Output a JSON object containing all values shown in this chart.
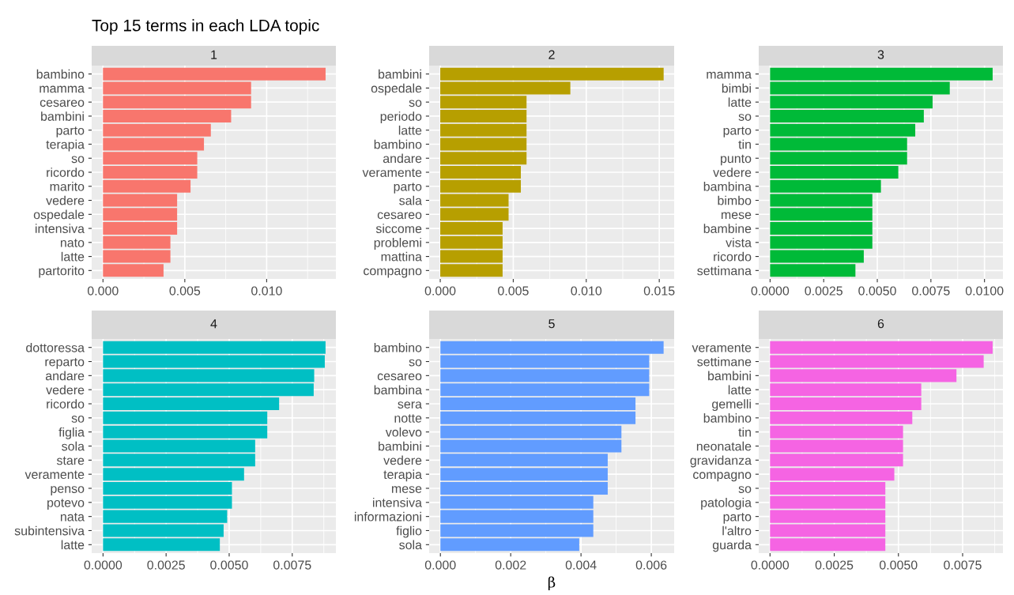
{
  "chart_data": [
    {
      "type": "bar",
      "orientation": "horizontal",
      "title": "1",
      "annotations": [
        "Top 15 terms in each LDA topic"
      ],
      "grid": true,
      "color": "#f8766d",
      "categories": [
        "bambino",
        "mamma",
        "cesareo",
        "bambini",
        "parto",
        "terapia",
        "so",
        "ricordo",
        "marito",
        "vedere",
        "ospedale",
        "intensiva",
        "nato",
        "latte",
        "partorito"
      ],
      "values": [
        0.0136,
        0.00905,
        0.00905,
        0.00783,
        0.00659,
        0.00617,
        0.00576,
        0.00576,
        0.00535,
        0.00453,
        0.00453,
        0.00453,
        0.00412,
        0.00412,
        0.0037
      ],
      "xlim": [
        -0.00069,
        0.01423
      ],
      "xticks": [
        {
          "value": 0,
          "label": "0.000"
        },
        {
          "value": 0.005,
          "label": "0.005"
        },
        {
          "value": 0.01,
          "label": "0.010"
        }
      ]
    },
    {
      "type": "bar",
      "orientation": "horizontal",
      "title": "2",
      "grid": true,
      "color": "#b79f00",
      "categories": [
        "bambini",
        "ospedale",
        "so",
        "periodo",
        "latte",
        "bambino",
        "andare",
        "veramente",
        "parto",
        "sala",
        "cesareo",
        "siccome",
        "problemi",
        "mattina",
        "compagno"
      ],
      "values": [
        0.0153,
        0.00891,
        0.00591,
        0.00591,
        0.00591,
        0.00591,
        0.00591,
        0.00552,
        0.00552,
        0.00468,
        0.00468,
        0.00427,
        0.00427,
        0.00427,
        0.00427
      ],
      "xlim": [
        -0.00076,
        0.01602
      ],
      "xticks": [
        {
          "value": 0,
          "label": "0.000"
        },
        {
          "value": 0.005,
          "label": "0.005"
        },
        {
          "value": 0.01,
          "label": "0.010"
        },
        {
          "value": 0.015,
          "label": "0.015"
        }
      ]
    },
    {
      "type": "bar",
      "orientation": "horizontal",
      "title": "3",
      "grid": true,
      "color": "#00ba38",
      "categories": [
        "mamma",
        "bimbi",
        "latte",
        "so",
        "parto",
        "tin",
        "punto",
        "vedere",
        "bambina",
        "bimbo",
        "mese",
        "bambine",
        "vista",
        "ricordo",
        "settimana"
      ],
      "values": [
        0.01038,
        0.00838,
        0.00758,
        0.00717,
        0.00677,
        0.00639,
        0.00639,
        0.00598,
        0.00517,
        0.00477,
        0.00477,
        0.00477,
        0.00477,
        0.00437,
        0.00398
      ],
      "xlim": [
        -0.00053,
        0.01086
      ],
      "xticks": [
        {
          "value": 0,
          "label": "0.0000"
        },
        {
          "value": 0.0025,
          "label": "0.0025"
        },
        {
          "value": 0.005,
          "label": "0.0050"
        },
        {
          "value": 0.0075,
          "label": "0.0075"
        },
        {
          "value": 0.01,
          "label": "0.0100"
        }
      ]
    },
    {
      "type": "bar",
      "orientation": "horizontal",
      "title": "4",
      "grid": true,
      "color": "#00bfc4",
      "categories": [
        "dottoressa",
        "reparto",
        "andare",
        "vedere",
        "ricordo",
        "so",
        "figlia",
        "sola",
        "stare",
        "veramente",
        "penso",
        "potevo",
        "nata",
        "subintensiva",
        "latte"
      ],
      "values": [
        0.00882,
        0.00879,
        0.00837,
        0.00835,
        0.00698,
        0.00651,
        0.00651,
        0.00603,
        0.00603,
        0.00559,
        0.00511,
        0.00511,
        0.00492,
        0.00478,
        0.00463
      ],
      "xlim": [
        -0.00045,
        0.00923
      ],
      "xticks": [
        {
          "value": 0,
          "label": "0.0000"
        },
        {
          "value": 0.0025,
          "label": "0.0025"
        },
        {
          "value": 0.005,
          "label": "0.0050"
        },
        {
          "value": 0.0075,
          "label": "0.0075"
        }
      ]
    },
    {
      "type": "bar",
      "orientation": "horizontal",
      "title": "5",
      "xlabel": "β",
      "grid": true,
      "color": "#619cff",
      "categories": [
        "bambino",
        "so",
        "cesareo",
        "bambina",
        "sera",
        "notte",
        "volevo",
        "bambini",
        "vedere",
        "terapia",
        "mese",
        "intensiva",
        "informazioni",
        "figlio",
        "sola"
      ],
      "values": [
        0.00635,
        0.00594,
        0.00594,
        0.00594,
        0.00555,
        0.00555,
        0.00515,
        0.00515,
        0.00476,
        0.00476,
        0.00476,
        0.00435,
        0.00435,
        0.00435,
        0.00395
      ],
      "xlim": [
        -0.00032,
        0.00665
      ],
      "xticks": [
        {
          "value": 0,
          "label": "0.000"
        },
        {
          "value": 0.002,
          "label": "0.002"
        },
        {
          "value": 0.004,
          "label": "0.004"
        },
        {
          "value": 0.006,
          "label": "0.006"
        }
      ]
    },
    {
      "type": "bar",
      "orientation": "horizontal",
      "title": "6",
      "grid": true,
      "color": "#f564e3",
      "categories": [
        "veramente",
        "settimane",
        "bambini",
        "latte",
        "gemelli",
        "bambino",
        "tin",
        "neonatale",
        "gravidanza",
        "compagno",
        "so",
        "patologia",
        "parto",
        "l'altro",
        "guarda"
      ],
      "values": [
        0.00867,
        0.00832,
        0.00726,
        0.00589,
        0.00589,
        0.00554,
        0.00518,
        0.00518,
        0.00518,
        0.00484,
        0.00449,
        0.00449,
        0.00449,
        0.00449,
        0.00449
      ],
      "xlim": [
        -0.00044,
        0.00907
      ],
      "xticks": [
        {
          "value": 0,
          "label": "0.0000"
        },
        {
          "value": 0.0025,
          "label": "0.0025"
        },
        {
          "value": 0.005,
          "label": "0.0050"
        },
        {
          "value": 0.0075,
          "label": "0.0075"
        }
      ]
    }
  ]
}
